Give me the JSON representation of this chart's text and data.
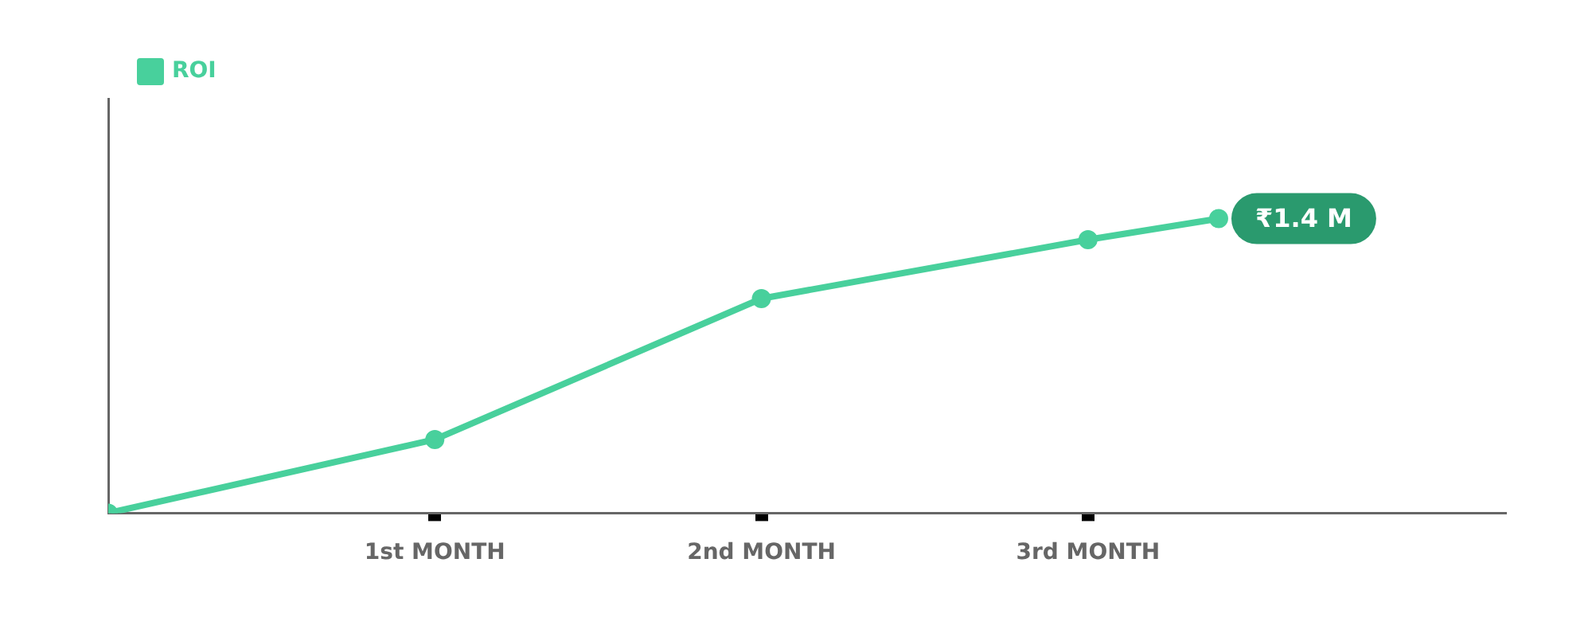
{
  "chart_data": {
    "type": "line",
    "ylim": [
      0,
      1.97
    ],
    "x": [
      0,
      1,
      2,
      3,
      3.4
    ],
    "xlim": [
      0,
      4.28
    ],
    "xticks": [
      {
        "value": 1,
        "label": "1st MONTH"
      },
      {
        "value": 2,
        "label": "2nd MONTH"
      },
      {
        "value": 3,
        "label": "3rd MONTH"
      }
    ],
    "series": [
      {
        "name": "ROI",
        "color": "#48d09c",
        "values": [
          0,
          0.35,
          1.02,
          1.3,
          1.4
        ],
        "value_labels": [
          null,
          null,
          null,
          null,
          "₹1.4 M"
        ]
      }
    ],
    "legend": "top left",
    "marker": "circle",
    "line_style": "solid",
    "grid": false
  }
}
